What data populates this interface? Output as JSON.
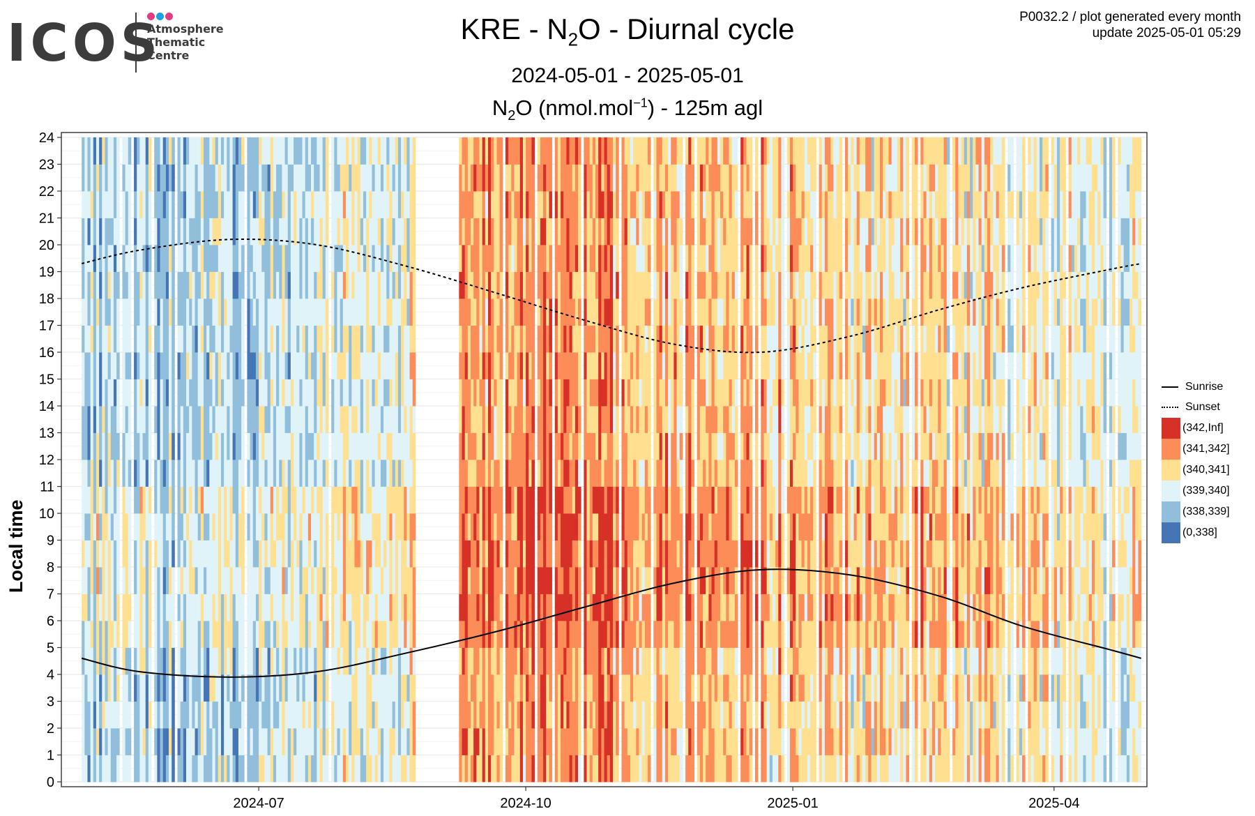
{
  "logo": {
    "text": "ICOS",
    "sub": [
      "Atmosphere",
      "Thematic",
      "Centre"
    ],
    "dot_colors": [
      "#e63a82",
      "#1aa3e0",
      "#e63a82"
    ]
  },
  "header": {
    "title_pre": "KRE - N",
    "title_sub": "2",
    "title_post": "O - Diurnal cycle",
    "daterange": "2024-05-01 - 2025-05-01",
    "subtitle_pre": "N",
    "subtitle_sub": "2",
    "subtitle_mid": "O (nmol.mol",
    "subtitle_sup": "−1",
    "subtitle_post": ") - 125m agl",
    "meta_line1": "P0032.2 / plot generated every month",
    "meta_line2": "update  2025-05-01 05:29"
  },
  "chart_data": {
    "type": "heatmap",
    "ylabel": "Local time",
    "xlabel": "",
    "x_range": [
      "2024-05-01",
      "2025-05-01"
    ],
    "x_ticks": [
      "2024-07-01",
      "2024-10-01",
      "2025-01-01",
      "2025-04-01"
    ],
    "x_tick_labels": [
      "2024-07",
      "2024-10",
      "2025-01",
      "2025-04"
    ],
    "y_range": [
      0,
      24
    ],
    "y_ticks": [
      0,
      1,
      2,
      3,
      4,
      5,
      6,
      7,
      8,
      9,
      10,
      11,
      12,
      13,
      14,
      15,
      16,
      17,
      18,
      19,
      20,
      21,
      22,
      23,
      24
    ],
    "grid": true,
    "data_gap": [
      "2024-08-24",
      "2024-09-08"
    ],
    "bins": [
      {
        "label": "(342,Inf]",
        "color": "#d73027"
      },
      {
        "label": "(341,342]",
        "color": "#fc8d59"
      },
      {
        "label": "(340,341]",
        "color": "#fee090"
      },
      {
        "label": "(339,340]",
        "color": "#e0f3f8"
      },
      {
        "label": "(338,339]",
        "color": "#91bfdb"
      },
      {
        "label": "(0,338]",
        "color": "#4575b4"
      }
    ],
    "sunrise": {
      "name": "Sunrise",
      "x": [
        "2024-05-01",
        "2024-05-21",
        "2024-06-21",
        "2024-07-21",
        "2024-08-21",
        "2024-09-21",
        "2024-10-21",
        "2024-11-21",
        "2024-12-21",
        "2025-01-21",
        "2025-02-21",
        "2025-03-21",
        "2025-04-21",
        "2025-05-01"
      ],
      "y": [
        4.6,
        4.1,
        3.9,
        4.1,
        4.8,
        5.6,
        6.5,
        7.4,
        7.9,
        7.7,
        6.9,
        5.8,
        4.9,
        4.6
      ]
    },
    "sunset": {
      "name": "Sunset",
      "x": [
        "2024-05-01",
        "2024-05-21",
        "2024-06-21",
        "2024-07-21",
        "2024-08-21",
        "2024-09-21",
        "2024-10-21",
        "2024-11-21",
        "2024-12-21",
        "2025-01-21",
        "2025-02-21",
        "2025-03-21",
        "2025-04-21",
        "2025-05-01"
      ],
      "y": [
        19.3,
        19.8,
        20.2,
        20.0,
        19.2,
        18.2,
        17.2,
        16.3,
        16.0,
        16.6,
        17.6,
        18.4,
        19.1,
        19.3
      ]
    },
    "legend_position": "right"
  }
}
